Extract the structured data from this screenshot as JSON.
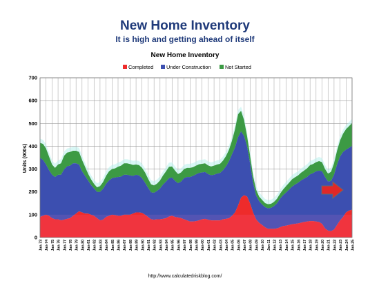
{
  "header": {
    "title": "New Home Inventory",
    "subtitle": "It is high and getting ahead of itself"
  },
  "footer": {
    "source": "http://www.calculatedriskblog.com/"
  },
  "colors": {
    "completed": "#ee2b2b",
    "under_construction": "#3c4fb0",
    "not_started": "#3c9a44",
    "highlight": "#b8f0ec",
    "arrow": "#e02828",
    "title": "#1f3a7a"
  },
  "chart_data": {
    "type": "area",
    "stacked": true,
    "title": "New Home Inventory",
    "xlabel": "",
    "ylabel": "Units (000s)",
    "ylim": [
      0,
      700
    ],
    "yticks": [
      0,
      100,
      200,
      300,
      400,
      500,
      600,
      700
    ],
    "grid": true,
    "legend_position": "top",
    "x_start": "Jan-73",
    "x_end": "Jan-25",
    "x_tick_labels": [
      "Jan-73",
      "Jan-74",
      "Jan-75",
      "Jan-76",
      "Jan-77",
      "Jan-78",
      "Jan-79",
      "Jan-80",
      "Jan-81",
      "Jan-82",
      "Jan-83",
      "Jan-84",
      "Jan-85",
      "Jan-86",
      "Jan-87",
      "Jan-88",
      "Jan-89",
      "Jan-90",
      "Jan-91",
      "Jan-92",
      "Jan-93",
      "Jan-94",
      "Jan-95",
      "Jan-96",
      "Jan-97",
      "Jan-98",
      "Jan-99",
      "Jan-00",
      "Jan-01",
      "Jan-02",
      "Jan-03",
      "Jan-04",
      "Jan-05",
      "Jan-06",
      "Jan-07",
      "Jan-08",
      "Jan-09",
      "Jan-10",
      "Jan-11",
      "Jan-12",
      "Jan-13",
      "Jan-14",
      "Jan-15",
      "Jan-16",
      "Jan-17",
      "Jan-18",
      "Jan-19",
      "Jan-20",
      "Jan-21",
      "Jan-22",
      "Jan-23",
      "Jan-24",
      "Jan-25"
    ],
    "x": [
      "Jan-73",
      "Jul-73",
      "Jan-74",
      "Jul-74",
      "Jan-75",
      "Jul-75",
      "Jan-76",
      "Jul-76",
      "Jan-77",
      "Jul-77",
      "Jan-78",
      "Jul-78",
      "Jan-79",
      "Jul-79",
      "Jan-80",
      "Jul-80",
      "Jan-81",
      "Jul-81",
      "Jan-82",
      "Jul-82",
      "Jan-83",
      "Jul-83",
      "Jan-84",
      "Jul-84",
      "Jan-85",
      "Jul-85",
      "Jan-86",
      "Jul-86",
      "Jan-87",
      "Jul-87",
      "Jan-88",
      "Jul-88",
      "Jan-89",
      "Jul-89",
      "Jan-90",
      "Jul-90",
      "Jan-91",
      "Jul-91",
      "Jan-92",
      "Jul-92",
      "Jan-93",
      "Jul-93",
      "Jan-94",
      "Jul-94",
      "Jan-95",
      "Jul-95",
      "Jan-96",
      "Jul-96",
      "Jan-97",
      "Jul-97",
      "Jan-98",
      "Jul-98",
      "Jan-99",
      "Jul-99",
      "Jan-00",
      "Jul-00",
      "Jan-01",
      "Jul-01",
      "Jan-02",
      "Jul-02",
      "Jan-03",
      "Jul-03",
      "Jan-04",
      "Jul-04",
      "Jan-05",
      "Jul-05",
      "Jan-06",
      "Jul-06",
      "Jan-07",
      "Jul-07",
      "Jan-08",
      "Jul-08",
      "Jan-09",
      "Jul-09",
      "Jan-10",
      "Jul-10",
      "Jan-11",
      "Jul-11",
      "Jan-12",
      "Jul-12",
      "Jan-13",
      "Jul-13",
      "Jan-14",
      "Jul-14",
      "Jan-15",
      "Jul-15",
      "Jan-16",
      "Jul-16",
      "Jan-17",
      "Jul-17",
      "Jan-18",
      "Jul-18",
      "Jan-19",
      "Jul-19",
      "Jan-20",
      "Jul-20",
      "Jan-21",
      "Jul-21",
      "Jan-22",
      "Jul-22",
      "Jan-23",
      "Jul-23",
      "Jan-24",
      "Jul-24",
      "Jan-25"
    ],
    "series": [
      {
        "name": "Completed",
        "values": [
          90,
          95,
          100,
          95,
          85,
          80,
          80,
          75,
          78,
          82,
          85,
          95,
          105,
          115,
          110,
          105,
          105,
          100,
          95,
          85,
          75,
          78,
          90,
          95,
          100,
          98,
          95,
          95,
          100,
          100,
          100,
          105,
          110,
          110,
          108,
          100,
          90,
          80,
          78,
          80,
          80,
          82,
          85,
          92,
          95,
          90,
          88,
          85,
          80,
          75,
          70,
          70,
          72,
          75,
          80,
          82,
          78,
          75,
          75,
          75,
          75,
          80,
          82,
          85,
          95,
          110,
          140,
          175,
          185,
          180,
          150,
          110,
          80,
          65,
          55,
          45,
          38,
          38,
          38,
          40,
          45,
          50,
          52,
          55,
          58,
          60,
          62,
          65,
          68,
          70,
          72,
          72,
          70,
          68,
          60,
          40,
          30,
          28,
          35,
          55,
          75,
          90,
          110,
          118,
          122
        ]
      },
      {
        "name": "Under Construction",
        "values": [
          260,
          245,
          220,
          200,
          190,
          185,
          195,
          200,
          220,
          230,
          230,
          230,
          220,
          205,
          180,
          165,
          145,
          130,
          120,
          115,
          125,
          135,
          145,
          155,
          160,
          165,
          170,
          172,
          175,
          175,
          172,
          165,
          165,
          162,
          152,
          140,
          128,
          118,
          118,
          124,
          135,
          150,
          160,
          168,
          168,
          158,
          150,
          160,
          180,
          190,
          195,
          200,
          205,
          208,
          205,
          205,
          200,
          198,
          200,
          205,
          208,
          215,
          230,
          250,
          270,
          285,
          300,
          290,
          260,
          220,
          175,
          130,
          105,
          95,
          90,
          88,
          90,
          92,
          100,
          110,
          125,
          135,
          145,
          155,
          165,
          172,
          178,
          185,
          190,
          195,
          205,
          210,
          220,
          225,
          230,
          225,
          215,
          220,
          240,
          265,
          280,
          285,
          275,
          275,
          280
        ]
      },
      {
        "name": "Not Started",
        "values": [
          65,
          70,
          70,
          60,
          45,
          40,
          45,
          50,
          60,
          60,
          60,
          55,
          55,
          55,
          50,
          40,
          30,
          25,
          20,
          20,
          25,
          30,
          35,
          40,
          40,
          40,
          45,
          48,
          50,
          50,
          50,
          48,
          45,
          45,
          45,
          45,
          40,
          35,
          32,
          32,
          35,
          40,
          45,
          50,
          48,
          45,
          40,
          40,
          40,
          40,
          40,
          38,
          38,
          38,
          38,
          38,
          38,
          38,
          40,
          40,
          40,
          42,
          45,
          50,
          60,
          80,
          100,
          90,
          70,
          45,
          35,
          30,
          25,
          20,
          20,
          18,
          18,
          18,
          18,
          20,
          22,
          25,
          28,
          30,
          32,
          32,
          32,
          34,
          35,
          38,
          40,
          40,
          40,
          42,
          40,
          35,
          35,
          40,
          50,
          60,
          70,
          80,
          90,
          95,
          100
        ]
      }
    ]
  }
}
